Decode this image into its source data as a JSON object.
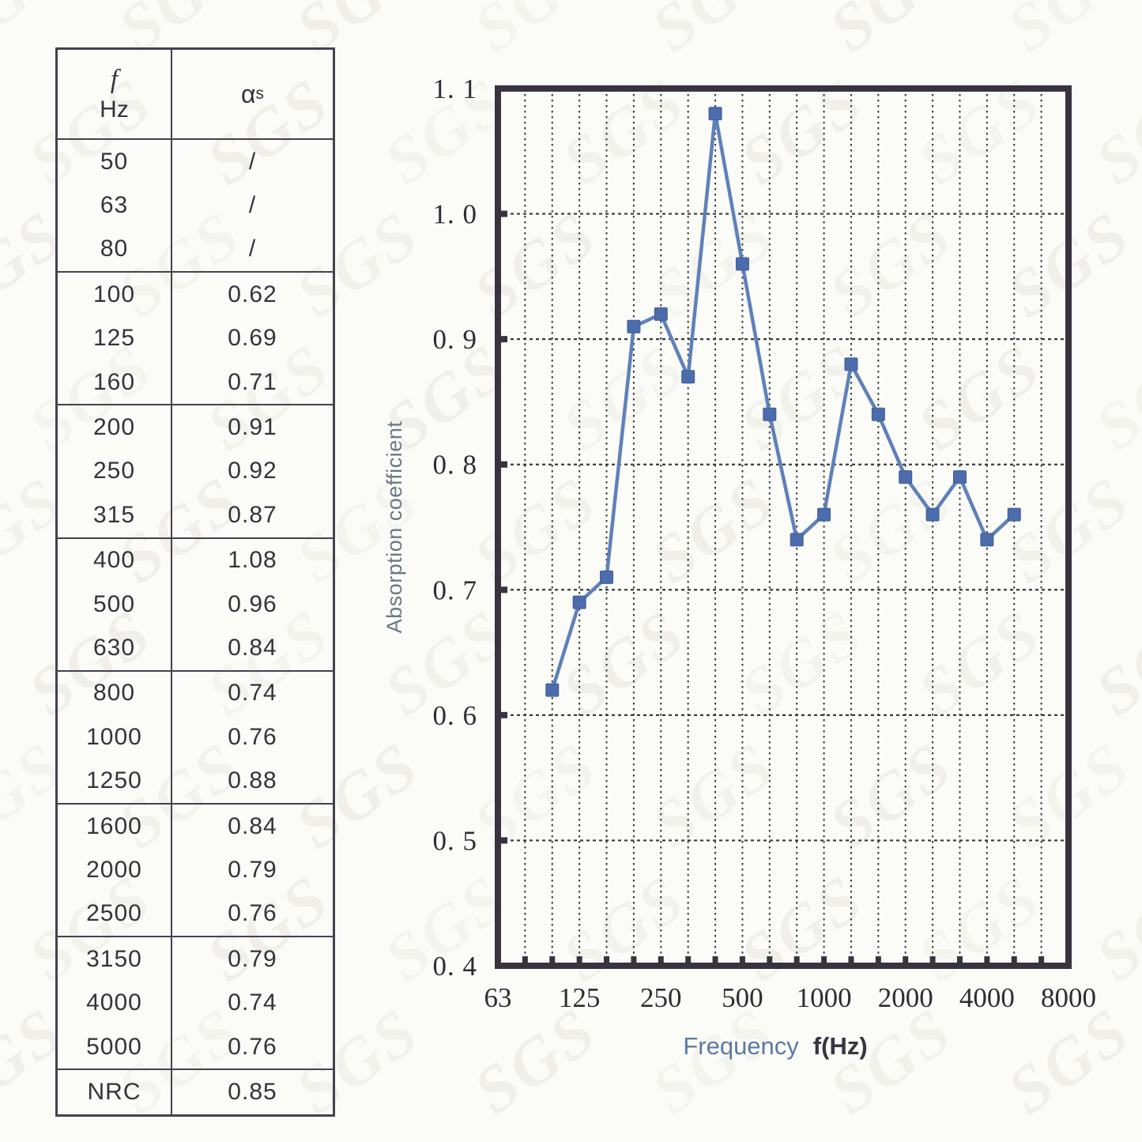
{
  "watermark": {
    "text": "SGS"
  },
  "table": {
    "header": {
      "f_symbol": "f",
      "f_unit": "Hz",
      "alpha": "α",
      "alpha_sub": "s"
    },
    "groups": [
      [
        {
          "f": "50",
          "a": "/"
        },
        {
          "f": "63",
          "a": "/"
        },
        {
          "f": "80",
          "a": "/"
        }
      ],
      [
        {
          "f": "100",
          "a": "0.62"
        },
        {
          "f": "125",
          "a": "0.69"
        },
        {
          "f": "160",
          "a": "0.71"
        }
      ],
      [
        {
          "f": "200",
          "a": "0.91"
        },
        {
          "f": "250",
          "a": "0.92"
        },
        {
          "f": "315",
          "a": "0.87"
        }
      ],
      [
        {
          "f": "400",
          "a": "1.08"
        },
        {
          "f": "500",
          "a": "0.96"
        },
        {
          "f": "630",
          "a": "0.84"
        }
      ],
      [
        {
          "f": "800",
          "a": "0.74"
        },
        {
          "f": "1000",
          "a": "0.76"
        },
        {
          "f": "1250",
          "a": "0.88"
        }
      ],
      [
        {
          "f": "1600",
          "a": "0.84"
        },
        {
          "f": "2000",
          "a": "0.79"
        },
        {
          "f": "2500",
          "a": "0.76"
        }
      ],
      [
        {
          "f": "3150",
          "a": "0.79"
        },
        {
          "f": "4000",
          "a": "0.74"
        },
        {
          "f": "5000",
          "a": "0.76"
        }
      ],
      [
        {
          "f": "NRC",
          "a": "0.85"
        }
      ]
    ]
  },
  "chart_data": {
    "type": "line",
    "title": "",
    "xlabel": "Frequency",
    "xlabel_unit": "f(Hz)",
    "ylabel": "Absorption coefficient",
    "ylim": [
      0.4,
      1.1
    ],
    "x_scale": "third-octave-log",
    "grid": "dotted",
    "legend": "none",
    "bands": [
      63,
      80,
      100,
      125,
      160,
      200,
      250,
      315,
      400,
      500,
      630,
      800,
      1000,
      1250,
      1600,
      2000,
      2500,
      3150,
      4000,
      5000,
      6300,
      8000
    ],
    "x_tick_labels": [
      {
        "label": "63",
        "f": 63
      },
      {
        "label": "125",
        "f": 125
      },
      {
        "label": "250",
        "f": 250
      },
      {
        "label": "500",
        "f": 500
      },
      {
        "label": "1000",
        "f": 1000
      },
      {
        "label": "2000",
        "f": 2000
      },
      {
        "label": "4000",
        "f": 4000
      },
      {
        "label": "8000",
        "f": 8000
      }
    ],
    "y_tick_labels": [
      {
        "label": "1. 1",
        "v": 1.1
      },
      {
        "label": "1. 0",
        "v": 1.0
      },
      {
        "label": "0. 9",
        "v": 0.9
      },
      {
        "label": "0. 8",
        "v": 0.8
      },
      {
        "label": "0. 7",
        "v": 0.7
      },
      {
        "label": "0. 6",
        "v": 0.6
      },
      {
        "label": "0. 5",
        "v": 0.5
      },
      {
        "label": "0. 4",
        "v": 0.4
      }
    ],
    "series": [
      {
        "name": "αs",
        "x": [
          100,
          125,
          160,
          200,
          250,
          315,
          400,
          500,
          630,
          800,
          1000,
          1250,
          1600,
          2000,
          2500,
          3150,
          4000,
          5000
        ],
        "values": [
          0.62,
          0.69,
          0.71,
          0.91,
          0.92,
          0.87,
          1.08,
          0.96,
          0.84,
          0.74,
          0.76,
          0.88,
          0.84,
          0.79,
          0.76,
          0.79,
          0.74,
          0.76
        ],
        "line_color": "#5f81ba",
        "marker": "square",
        "marker_color": "#4c6cab",
        "marker_edge": "#3f5d9b"
      }
    ],
    "frame_color": "#38333e",
    "grid_color": "#3a3a3e"
  }
}
